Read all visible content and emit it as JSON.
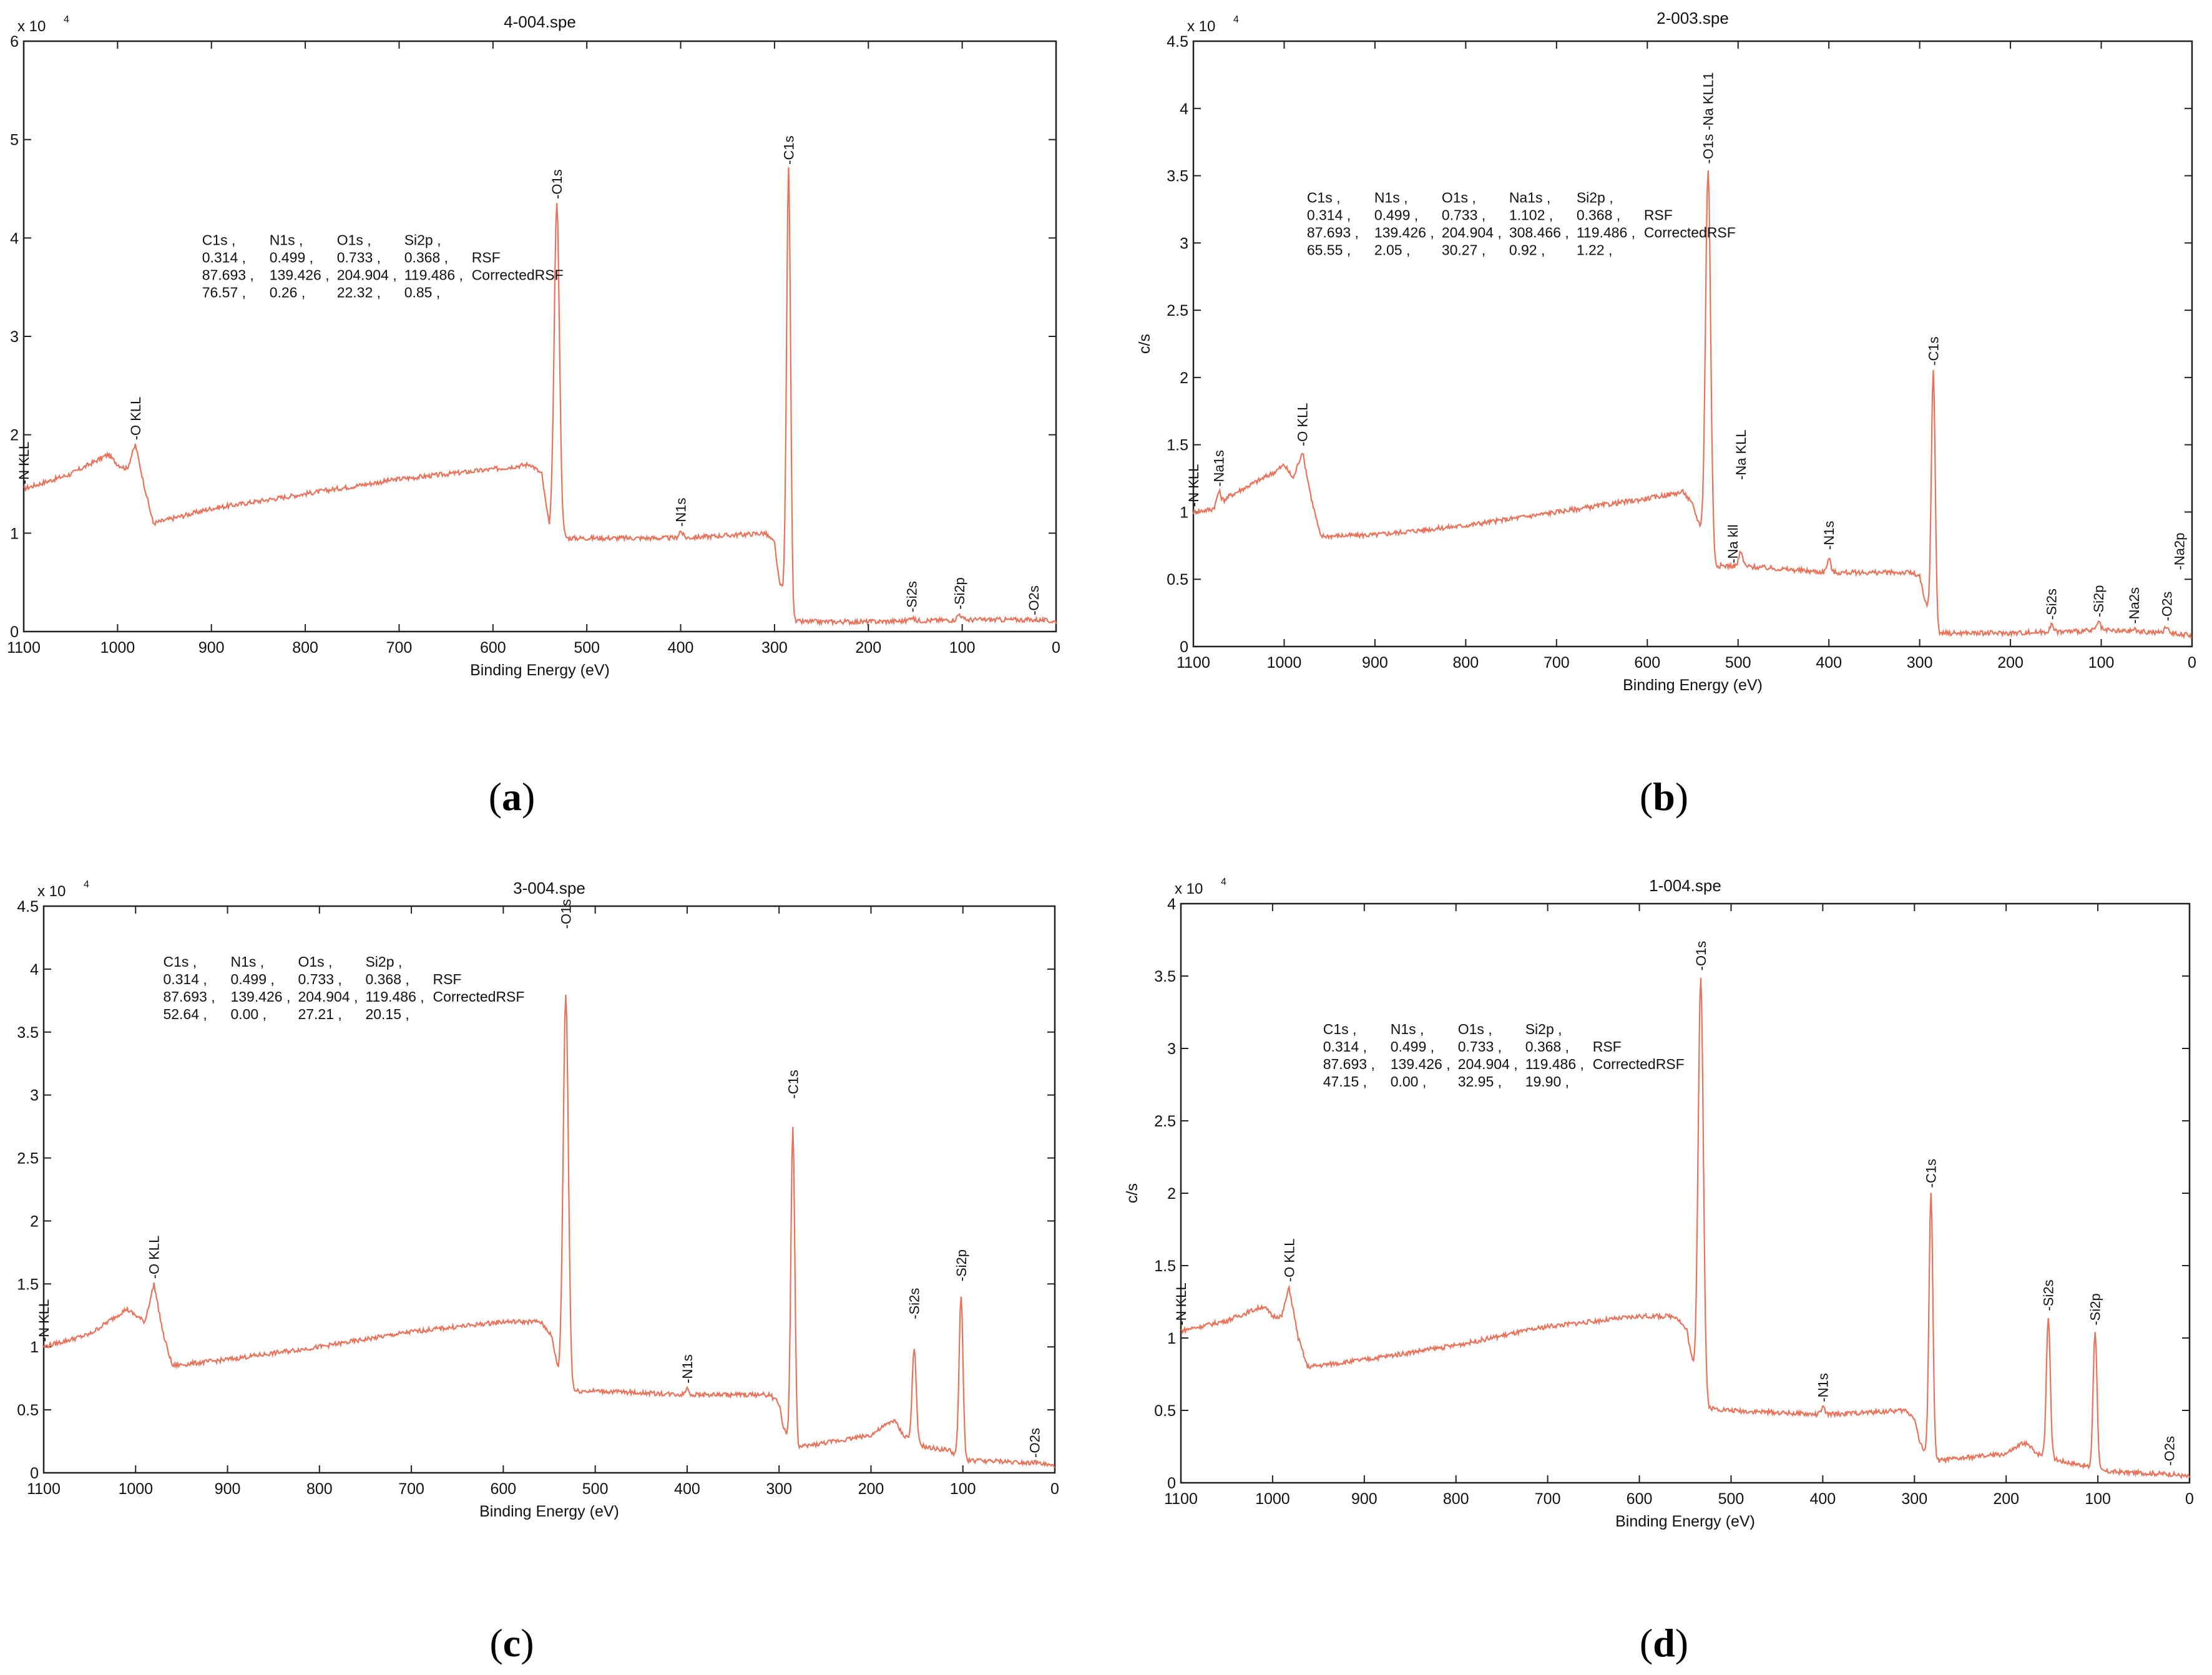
{
  "colors": {
    "trace": "#e8735a",
    "axis": "#222222",
    "text": "#111111"
  },
  "chart_data": [
    {
      "type": "line",
      "panel_label": "a",
      "title": "4-004.spe",
      "xlabel": "Binding Energy (eV)",
      "ylabel": "",
      "exponent_label": "x 10",
      "exponent": "4",
      "xlim": [
        1100,
        0
      ],
      "ylim": [
        0,
        6
      ],
      "xticks": [
        1100,
        1000,
        900,
        800,
        700,
        600,
        500,
        400,
        300,
        200,
        100,
        0
      ],
      "yticks": [
        0,
        1,
        2,
        3,
        4,
        5,
        6
      ],
      "ytick_labels": [
        "0",
        "1",
        "2",
        "3",
        "4",
        "5",
        "6"
      ],
      "baseline": [
        [
          1100,
          1.45
        ],
        [
          1050,
          1.6
        ],
        [
          1010,
          1.8
        ],
        [
          1000,
          1.7
        ],
        [
          990,
          1.65
        ],
        [
          981,
          1.9
        ],
        [
          972,
          1.5
        ],
        [
          962,
          1.1
        ],
        [
          900,
          1.25
        ],
        [
          800,
          1.4
        ],
        [
          700,
          1.55
        ],
        [
          600,
          1.65
        ],
        [
          560,
          1.7
        ],
        [
          548,
          1.6
        ],
        [
          540,
          1.05
        ],
        [
          536,
          1.0
        ],
        [
          520,
          0.95
        ],
        [
          400,
          0.95
        ],
        [
          310,
          1.0
        ],
        [
          300,
          0.9
        ],
        [
          295,
          0.5
        ],
        [
          290,
          0.4
        ],
        [
          286,
          0.4
        ],
        [
          280,
          0.1
        ],
        [
          200,
          0.1
        ],
        [
          100,
          0.12
        ],
        [
          20,
          0.12
        ],
        [
          0,
          0.1
        ]
      ],
      "peaks": [
        {
          "x": 532,
          "y": 4.35,
          "w": 4
        },
        {
          "x": 285,
          "y": 4.7,
          "w": 3
        },
        {
          "x": 400,
          "y": 1.02,
          "w": 3
        },
        {
          "x": 154,
          "y": 0.15,
          "w": 3
        },
        {
          "x": 103,
          "y": 0.18,
          "w": 3
        }
      ],
      "peak_labels": [
        {
          "text": "-C1s",
          "x": 285,
          "y": 4.72
        },
        {
          "text": "-O1s",
          "x": 532,
          "y": 4.37
        },
        {
          "text": "-O KLL",
          "x": 981,
          "y": 1.92
        },
        {
          "text": "-N KLL",
          "x": 1100,
          "y": 1.47
        },
        {
          "text": "-N1s",
          "x": 400,
          "y": 1.04
        },
        {
          "text": "-Si2s",
          "x": 154,
          "y": 0.17
        },
        {
          "text": "-Si2p",
          "x": 103,
          "y": 0.2
        },
        {
          "text": "-O2s",
          "x": 24,
          "y": 0.14
        }
      ],
      "table_anchor": {
        "x": 910,
        "y": 3.93
      },
      "table_rows": [
        [
          "C1s ,",
          "N1s ,",
          "O1s ,",
          "Si2p ,",
          ""
        ],
        [
          "0.314 ,",
          "0.499 ,",
          "0.733 ,",
          "0.368 ,",
          "RSF"
        ],
        [
          "87.693 ,",
          "139.426 ,",
          "204.904 ,",
          "119.486 ,",
          "CorrectedRSF"
        ],
        [
          "76.57 ,",
          "0.26 ,",
          "22.32 ,",
          "0.85 ,",
          ""
        ]
      ]
    },
    {
      "type": "line",
      "panel_label": "b",
      "title": "2-003.spe",
      "xlabel": "Binding Energy (eV)",
      "ylabel": "c/s",
      "exponent_label": "x 10",
      "exponent": "4",
      "xlim": [
        1100,
        0
      ],
      "ylim": [
        0,
        4.5
      ],
      "xticks": [
        1100,
        1000,
        900,
        800,
        700,
        600,
        500,
        400,
        300,
        200,
        100,
        0
      ],
      "yticks": [
        0,
        0.5,
        1,
        1.5,
        2,
        2.5,
        3,
        3.5,
        4,
        4.5
      ],
      "ytick_labels": [
        "0",
        "0.5",
        "1",
        "1.5",
        "2",
        "2.5",
        "3",
        "3.5",
        "4",
        "4.5"
      ],
      "baseline": [
        [
          1100,
          1.0
        ],
        [
          1080,
          1.02
        ],
        [
          1060,
          1.12
        ],
        [
          1010,
          1.3
        ],
        [
          1000,
          1.35
        ],
        [
          990,
          1.25
        ],
        [
          980,
          1.45
        ],
        [
          970,
          1.1
        ],
        [
          960,
          0.82
        ],
        [
          900,
          0.83
        ],
        [
          800,
          0.9
        ],
        [
          700,
          1.0
        ],
        [
          600,
          1.1
        ],
        [
          560,
          1.15
        ],
        [
          550,
          1.05
        ],
        [
          540,
          0.85
        ],
        [
          530,
          0.6
        ],
        [
          500,
          0.6
        ],
        [
          400,
          0.55
        ],
        [
          310,
          0.55
        ],
        [
          300,
          0.52
        ],
        [
          295,
          0.35
        ],
        [
          289,
          0.25
        ],
        [
          280,
          0.1
        ],
        [
          200,
          0.1
        ],
        [
          100,
          0.12
        ],
        [
          20,
          0.1
        ],
        [
          0,
          0.08
        ]
      ],
      "peaks": [
        {
          "x": 533,
          "y": 3.55,
          "w": 4
        },
        {
          "x": 285,
          "y": 2.05,
          "w": 3
        },
        {
          "x": 1072,
          "y": 1.15,
          "w": 3
        },
        {
          "x": 497,
          "y": 0.7,
          "w": 3
        },
        {
          "x": 400,
          "y": 0.65,
          "w": 3
        },
        {
          "x": 155,
          "y": 0.16,
          "w": 3
        },
        {
          "x": 103,
          "y": 0.18,
          "w": 3
        },
        {
          "x": 64,
          "y": 0.13,
          "w": 3
        },
        {
          "x": 28,
          "y": 0.15,
          "w": 3
        }
      ],
      "peak_labels": [
        {
          "text": "-O1s -Na KLL1",
          "x": 533,
          "y": 3.57
        },
        {
          "text": "-C1s",
          "x": 285,
          "y": 2.07
        },
        {
          "text": "-O KLL",
          "x": 980,
          "y": 1.47
        },
        {
          "text": "-N KLL",
          "x": 1100,
          "y": 1.02
        },
        {
          "text": "-Na1s",
          "x": 1072,
          "y": 1.17
        },
        {
          "text": "-Na KLL",
          "x": 497,
          "y": 1.22
        },
        {
          "text": "-Na kll",
          "x": 506,
          "y": 0.6
        },
        {
          "text": "-N1s",
          "x": 400,
          "y": 0.7
        },
        {
          "text": "-Si2s",
          "x": 155,
          "y": 0.18
        },
        {
          "text": "-Si2p",
          "x": 103,
          "y": 0.2
        },
        {
          "text": "-Na2s",
          "x": 64,
          "y": 0.15
        },
        {
          "text": "-O2s",
          "x": 28,
          "y": 0.17
        },
        {
          "text": "-Na2p",
          "x": 14,
          "y": 0.55
        }
      ],
      "table_anchor": {
        "x": 975,
        "y": 3.3
      },
      "table_rows": [
        [
          "C1s ,",
          "N1s ,",
          "O1s ,",
          "Na1s ,",
          "Si2p ,",
          ""
        ],
        [
          "0.314 ,",
          "0.499 ,",
          "0.733 ,",
          "1.102 ,",
          "0.368 ,",
          "RSF"
        ],
        [
          "87.693 ,",
          "139.426 ,",
          "204.904 ,",
          "308.466 ,",
          "119.486 ,",
          "CorrectedRSF"
        ],
        [
          "65.55 ,",
          "2.05 ,",
          "30.27 ,",
          "0.92 ,",
          "1.22 ,",
          ""
        ]
      ]
    },
    {
      "type": "line",
      "panel_label": "c",
      "title": "3-004.spe",
      "xlabel": "Binding Energy (eV)",
      "ylabel": "",
      "exponent_label": "x 10",
      "exponent": "4",
      "xlim": [
        1100,
        0
      ],
      "ylim": [
        0,
        4.5
      ],
      "xticks": [
        1100,
        1000,
        900,
        800,
        700,
        600,
        500,
        400,
        300,
        200,
        100,
        0
      ],
      "yticks": [
        0,
        0.5,
        1,
        1.5,
        2,
        2.5,
        3,
        3.5,
        4,
        4.5
      ],
      "ytick_labels": [
        "0",
        "0.5",
        "1",
        "1.5",
        "2",
        "2.5",
        "3",
        "3.5",
        "4",
        "4.5"
      ],
      "baseline": [
        [
          1100,
          1.0
        ],
        [
          1050,
          1.1
        ],
        [
          1010,
          1.3
        ],
        [
          1000,
          1.25
        ],
        [
          990,
          1.2
        ],
        [
          980,
          1.5
        ],
        [
          970,
          1.1
        ],
        [
          960,
          0.85
        ],
        [
          900,
          0.9
        ],
        [
          800,
          1.0
        ],
        [
          700,
          1.12
        ],
        [
          600,
          1.2
        ],
        [
          560,
          1.2
        ],
        [
          548,
          1.1
        ],
        [
          540,
          0.8
        ],
        [
          530,
          0.65
        ],
        [
          500,
          0.65
        ],
        [
          400,
          0.62
        ],
        [
          310,
          0.62
        ],
        [
          300,
          0.55
        ],
        [
          295,
          0.35
        ],
        [
          290,
          0.28
        ],
        [
          280,
          0.2
        ],
        [
          200,
          0.3
        ],
        [
          175,
          0.42
        ],
        [
          165,
          0.3
        ],
        [
          140,
          0.2
        ],
        [
          115,
          0.18
        ],
        [
          100,
          0.1
        ],
        [
          20,
          0.08
        ],
        [
          0,
          0.05
        ]
      ],
      "peaks": [
        {
          "x": 532,
          "y": 3.8,
          "w": 4
        },
        {
          "x": 285,
          "y": 2.75,
          "w": 3
        },
        {
          "x": 153,
          "y": 1.0,
          "w": 3
        },
        {
          "x": 102,
          "y": 1.4,
          "w": 3
        },
        {
          "x": 400,
          "y": 0.67,
          "w": 3
        }
      ],
      "peak_labels": [
        {
          "text": "-O1s",
          "x": 532,
          "y": 4.3
        },
        {
          "text": "-C1s",
          "x": 285,
          "y": 2.95
        },
        {
          "text": "-O KLL",
          "x": 980,
          "y": 1.52
        },
        {
          "text": "-N KLL",
          "x": 1100,
          "y": 1.02
        },
        {
          "text": "-N1s",
          "x": 400,
          "y": 0.69
        },
        {
          "text": "-Si2s",
          "x": 153,
          "y": 1.2
        },
        {
          "text": "-Si2p",
          "x": 102,
          "y": 1.5
        },
        {
          "text": "-O2s",
          "x": 22,
          "y": 0.1
        }
      ],
      "table_anchor": {
        "x": 970,
        "y": 4.02
      },
      "table_rows": [
        [
          "C1s ,",
          "N1s ,",
          "O1s ,",
          "Si2p ,",
          ""
        ],
        [
          "0.314 ,",
          "0.499 ,",
          "0.733 ,",
          "0.368 ,",
          "RSF"
        ],
        [
          "87.693 ,",
          "139.426 ,",
          "204.904 ,",
          "119.486 ,",
          "CorrectedRSF"
        ],
        [
          "52.64 ,",
          "0.00 ,",
          "27.21 ,",
          "20.15 ,",
          ""
        ]
      ]
    },
    {
      "type": "line",
      "panel_label": "d",
      "title": "1-004.spe",
      "xlabel": "Binding Energy (eV)",
      "ylabel": "c/s",
      "exponent_label": "x 10",
      "exponent": "4",
      "xlim": [
        1100,
        0
      ],
      "ylim": [
        0,
        4
      ],
      "xticks": [
        1100,
        1000,
        900,
        800,
        700,
        600,
        500,
        400,
        300,
        200,
        100,
        0
      ],
      "yticks": [
        0,
        0.5,
        1,
        1.5,
        2,
        2.5,
        3,
        3.5,
        4
      ],
      "ytick_labels": [
        "0",
        "0.5",
        "1",
        "1.5",
        "2",
        "2.5",
        "3",
        "3.5",
        "4"
      ],
      "baseline": [
        [
          1100,
          1.05
        ],
        [
          1050,
          1.12
        ],
        [
          1010,
          1.22
        ],
        [
          1000,
          1.15
        ],
        [
          990,
          1.15
        ],
        [
          982,
          1.35
        ],
        [
          972,
          1.0
        ],
        [
          962,
          0.8
        ],
        [
          900,
          0.85
        ],
        [
          800,
          0.95
        ],
        [
          700,
          1.08
        ],
        [
          600,
          1.15
        ],
        [
          560,
          1.15
        ],
        [
          548,
          1.05
        ],
        [
          540,
          0.75
        ],
        [
          530,
          0.52
        ],
        [
          500,
          0.5
        ],
        [
          400,
          0.47
        ],
        [
          310,
          0.5
        ],
        [
          300,
          0.45
        ],
        [
          295,
          0.3
        ],
        [
          290,
          0.22
        ],
        [
          280,
          0.15
        ],
        [
          200,
          0.2
        ],
        [
          180,
          0.28
        ],
        [
          165,
          0.2
        ],
        [
          140,
          0.15
        ],
        [
          115,
          0.12
        ],
        [
          100,
          0.08
        ],
        [
          20,
          0.06
        ],
        [
          0,
          0.04
        ]
      ],
      "peaks": [
        {
          "x": 533,
          "y": 3.5,
          "w": 4
        },
        {
          "x": 282,
          "y": 2.0,
          "w": 3
        },
        {
          "x": 154,
          "y": 1.15,
          "w": 3
        },
        {
          "x": 103,
          "y": 1.05,
          "w": 3
        },
        {
          "x": 400,
          "y": 0.52,
          "w": 3
        }
      ],
      "peak_labels": [
        {
          "text": "-O1s",
          "x": 533,
          "y": 3.52
        },
        {
          "text": "-C1s",
          "x": 282,
          "y": 2.02
        },
        {
          "text": "-O KLL",
          "x": 982,
          "y": 1.37
        },
        {
          "text": "-N KLL",
          "x": 1100,
          "y": 1.07
        },
        {
          "text": "-N1s",
          "x": 400,
          "y": 0.54
        },
        {
          "text": "-Si2s",
          "x": 154,
          "y": 1.17
        },
        {
          "text": "-Si2p",
          "x": 103,
          "y": 1.07
        },
        {
          "text": "-O2s",
          "x": 22,
          "y": 0.1
        }
      ],
      "table_anchor": {
        "x": 945,
        "y": 3.1
      },
      "table_rows": [
        [
          "C1s ,",
          "N1s ,",
          "O1s ,",
          "Si2p ,",
          ""
        ],
        [
          "0.314 ,",
          "0.499 ,",
          "0.733 ,",
          "0.368 ,",
          "RSF"
        ],
        [
          "87.693 ,",
          "139.426 ,",
          "204.904 ,",
          "119.486 ,",
          "CorrectedRSF"
        ],
        [
          "47.15 ,",
          "0.00 ,",
          "32.95 ,",
          "19.90 ,",
          ""
        ]
      ]
    }
  ]
}
